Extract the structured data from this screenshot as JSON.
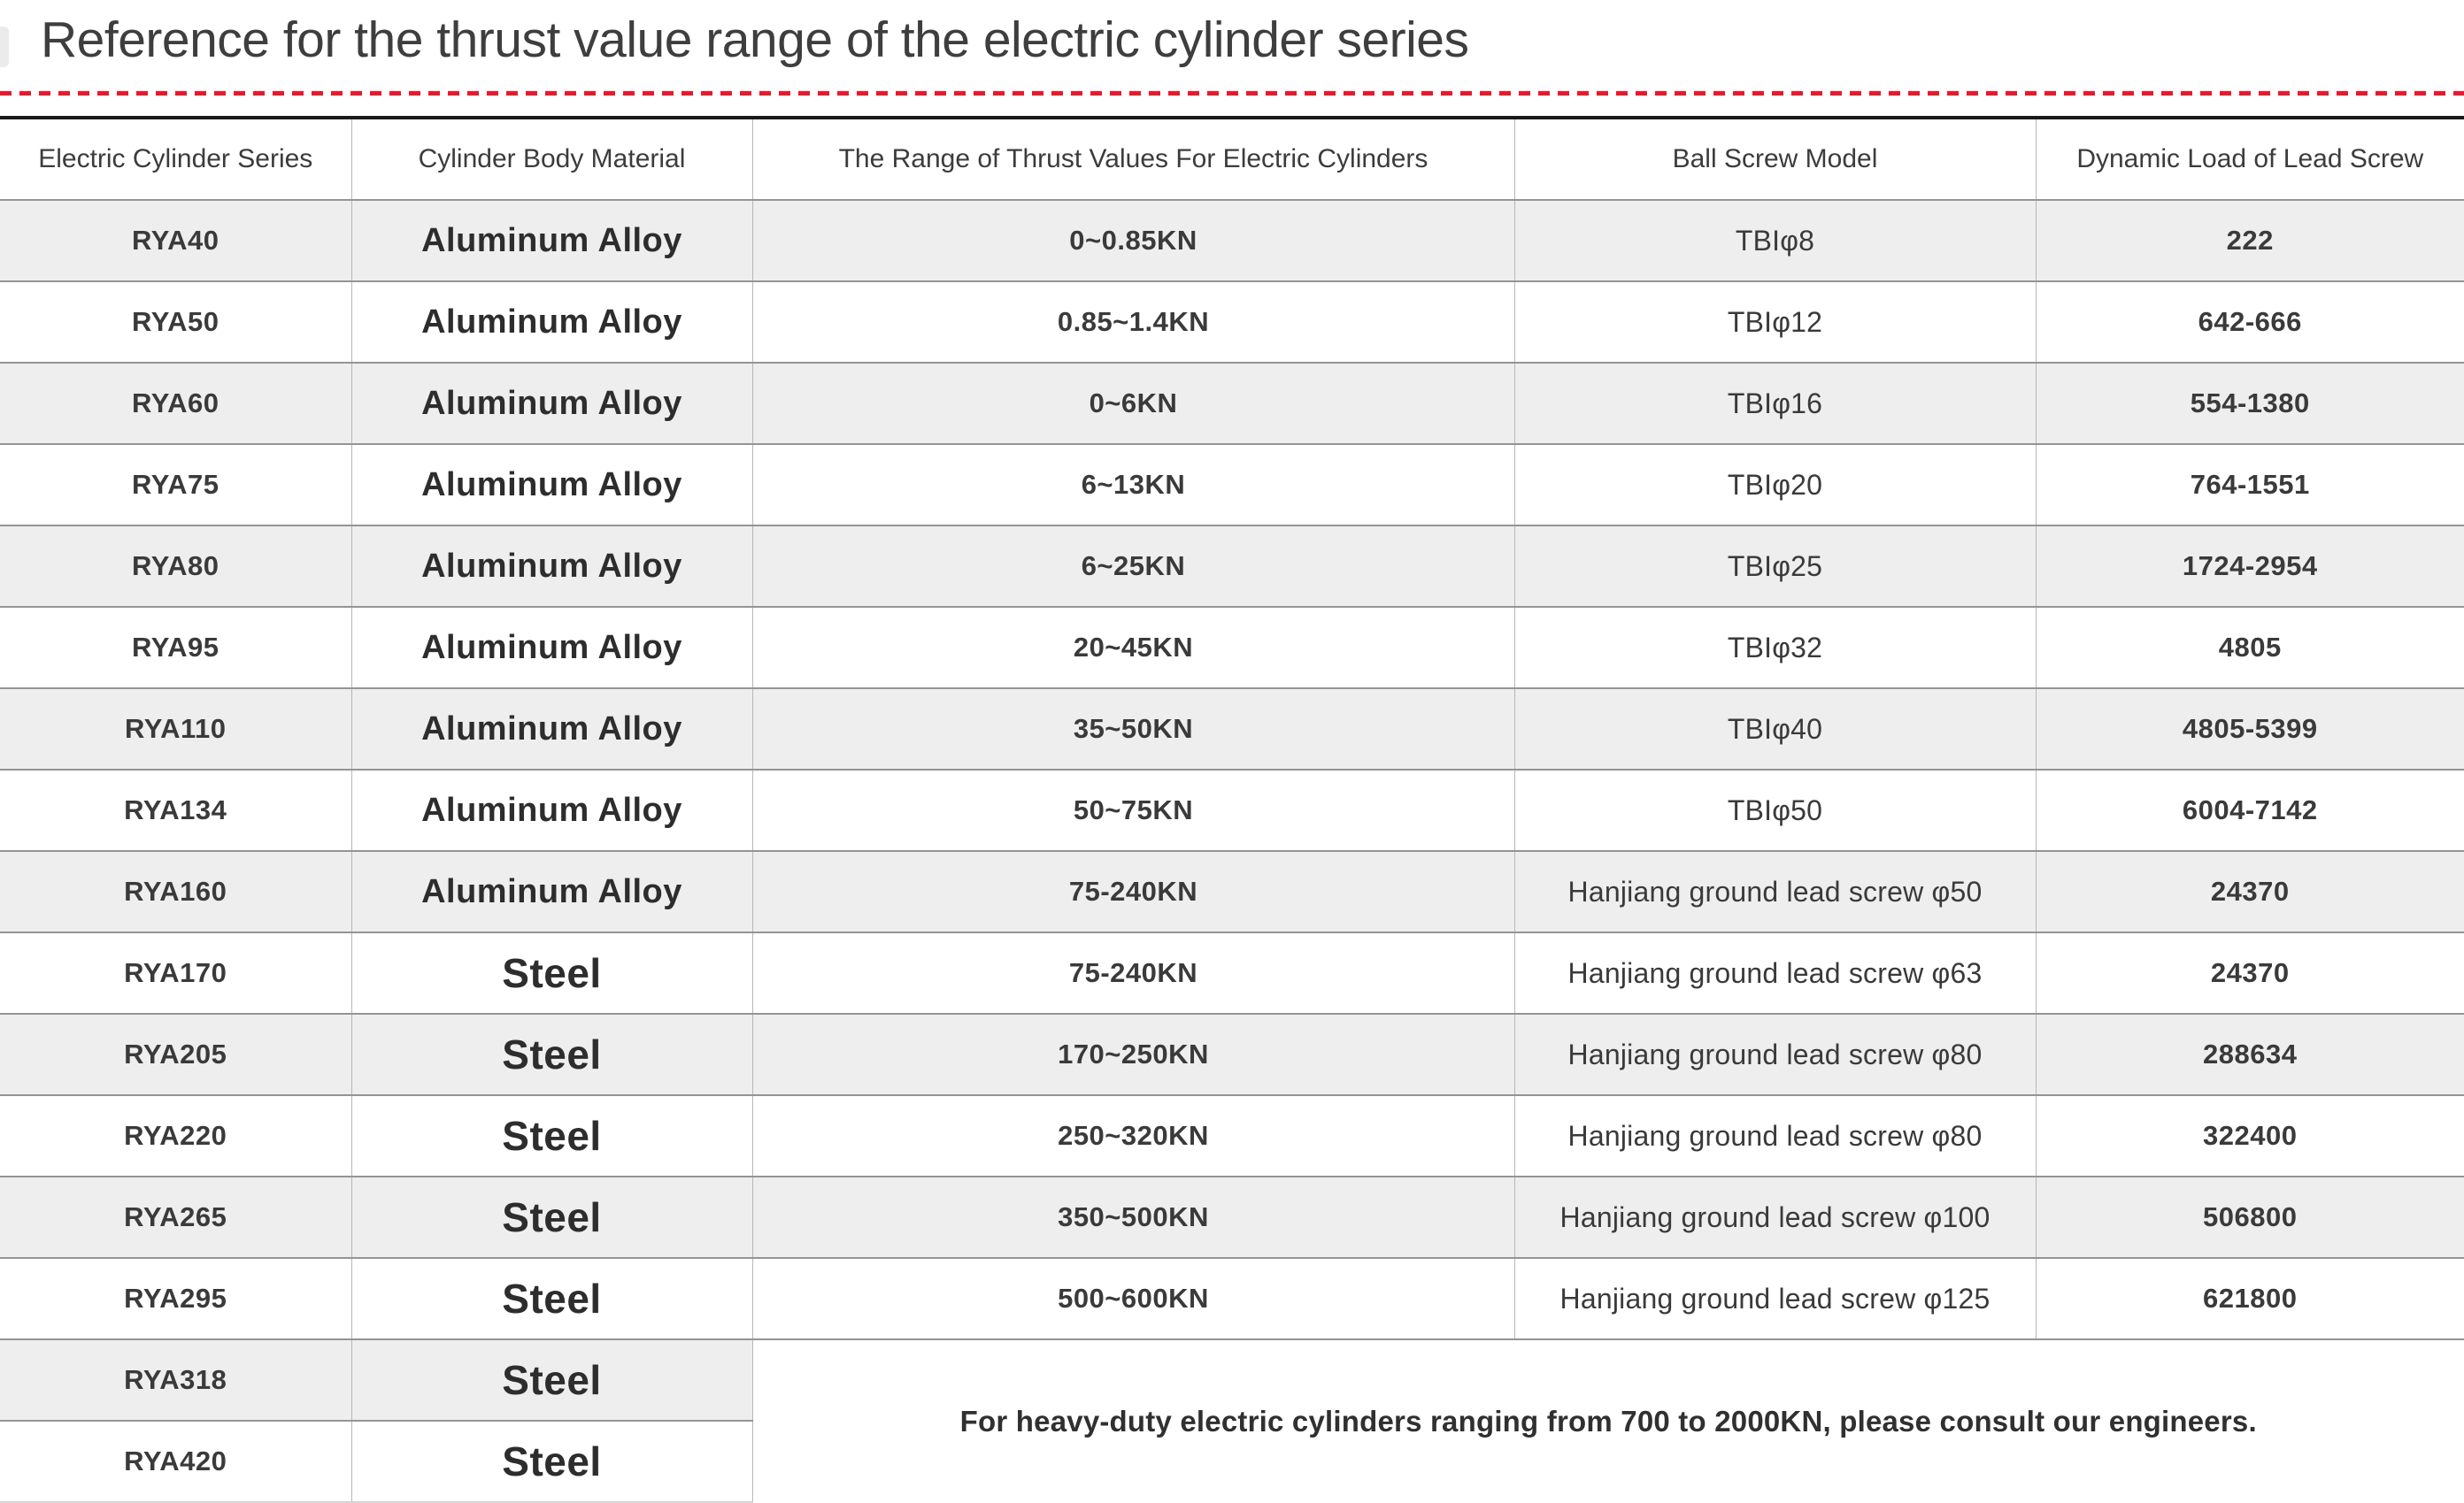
{
  "chart_data": {
    "type": "table",
    "title": "Reference for the thrust value range of the electric cylinder series",
    "columns": [
      "Electric Cylinder Series",
      "Cylinder Body Material",
      "The Range of Thrust Values For Electric Cylinders",
      "Ball Screw Model",
      "Dynamic Load of Lead Screw"
    ],
    "rows": [
      {
        "series": "RYA40",
        "material": "Aluminum Alloy",
        "thrust": "0~0.85KN",
        "screw": "TBIφ8",
        "load": "222"
      },
      {
        "series": "RYA50",
        "material": "Aluminum Alloy",
        "thrust": "0.85~1.4KN",
        "screw": "TBIφ12",
        "load": "642-666"
      },
      {
        "series": "RYA60",
        "material": "Aluminum Alloy",
        "thrust": "0~6KN",
        "screw": "TBIφ16",
        "load": "554-1380"
      },
      {
        "series": "RYA75",
        "material": "Aluminum Alloy",
        "thrust": "6~13KN",
        "screw": "TBIφ20",
        "load": "764-1551"
      },
      {
        "series": "RYA80",
        "material": "Aluminum Alloy",
        "thrust": "6~25KN",
        "screw": "TBIφ25",
        "load": "1724-2954"
      },
      {
        "series": "RYA95",
        "material": "Aluminum Alloy",
        "thrust": "20~45KN",
        "screw": "TBIφ32",
        "load": "4805"
      },
      {
        "series": "RYA110",
        "material": "Aluminum Alloy",
        "thrust": "35~50KN",
        "screw": "TBIφ40",
        "load": "4805-5399"
      },
      {
        "series": "RYA134",
        "material": "Aluminum Alloy",
        "thrust": "50~75KN",
        "screw": "TBIφ50",
        "load": "6004-7142"
      },
      {
        "series": "RYA160",
        "material": "Aluminum Alloy",
        "thrust": "75-240KN",
        "screw": "Hanjiang ground lead screw φ50",
        "load": "24370"
      },
      {
        "series": "RYA170",
        "material": "Steel",
        "thrust": "75-240KN",
        "screw": "Hanjiang ground lead screw φ63",
        "load": "24370"
      },
      {
        "series": "RYA205",
        "material": "Steel",
        "thrust": "170~250KN",
        "screw": "Hanjiang ground lead screw φ80",
        "load": "288634"
      },
      {
        "series": "RYA220",
        "material": "Steel",
        "thrust": "250~320KN",
        "screw": "Hanjiang ground lead screw φ80",
        "load": "322400"
      },
      {
        "series": "RYA265",
        "material": "Steel",
        "thrust": "350~500KN",
        "screw": "Hanjiang ground lead screw φ100",
        "load": "506800"
      },
      {
        "series": "RYA295",
        "material": "Steel",
        "thrust": "500~600KN",
        "screw": "Hanjiang ground lead screw φ125",
        "load": "621800"
      },
      {
        "series": "RYA318",
        "material": "Steel",
        "thrust": null,
        "screw": null,
        "load": null
      },
      {
        "series": "RYA420",
        "material": "Steel",
        "thrust": null,
        "screw": null,
        "load": null
      }
    ],
    "note": "For heavy-duty electric cylinders ranging from 700 to 2000KN, please consult our engineers.",
    "layout_hints": {
      "striped_rows": "odd",
      "note_span": {
        "rows": 2,
        "cols": 3
      }
    }
  },
  "colors": {
    "accent_red": "#e8192d",
    "stripe_gray": "#eeeeee",
    "row_divider": "#949494",
    "column_divider": "#b7b7b7",
    "table_top_border": "#1a1a1a",
    "text": "#3a3a3a"
  }
}
